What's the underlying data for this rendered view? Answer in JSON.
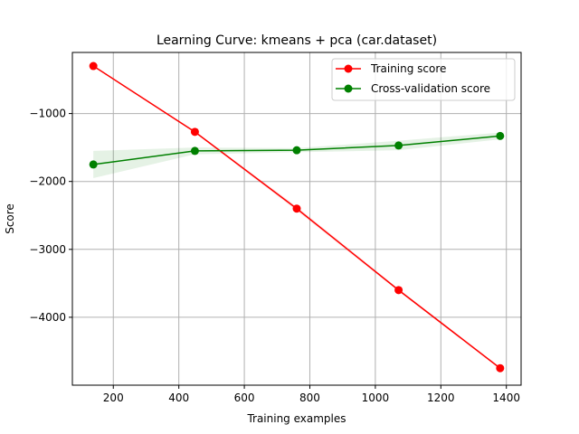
{
  "chart_data": {
    "type": "line",
    "title": "Learning Curve: kmeans + pca (car.dataset)",
    "xlabel": "Training examples",
    "ylabel": "Score",
    "xlim": [
      75,
      1445
    ],
    "ylim": [
      -5000,
      -100
    ],
    "xticks": [
      200,
      400,
      600,
      800,
      1000,
      1200,
      1400
    ],
    "yticks": [
      -4000,
      -3000,
      -2000,
      -1000
    ],
    "x": [
      139,
      449,
      760,
      1071,
      1381
    ],
    "grid": true,
    "legend_position": "top-right",
    "series": [
      {
        "name": "Training score",
        "color": "#ff0000",
        "values": [
          -300,
          -1270,
          -2400,
          -3600,
          -4750
        ],
        "band_low": [
          -310,
          -1285,
          -2430,
          -3620,
          -4765
        ],
        "band_high": [
          -290,
          -1255,
          -2370,
          -3580,
          -4735
        ]
      },
      {
        "name": "Cross-validation score",
        "color": "#008000",
        "values": [
          -1750,
          -1550,
          -1540,
          -1470,
          -1330
        ],
        "band_low": [
          -1950,
          -1600,
          -1570,
          -1540,
          -1380
        ],
        "band_high": [
          -1550,
          -1500,
          -1510,
          -1400,
          -1280
        ]
      }
    ]
  }
}
